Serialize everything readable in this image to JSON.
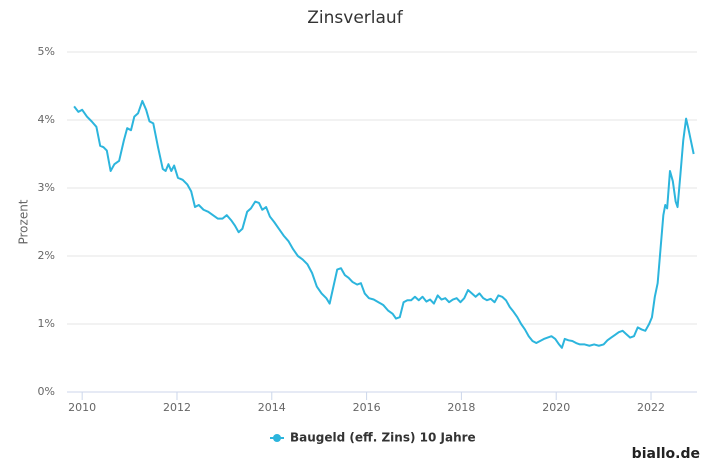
{
  "chart_data": {
    "type": "line",
    "title": "Zinsverlauf",
    "y_label": "Prozent",
    "xlim": [
      2009.68,
      2022.97
    ],
    "xticks": [
      2010,
      2012,
      2014,
      2016,
      2018,
      2020,
      2022
    ],
    "ylim": [
      0,
      5
    ],
    "yticks": [
      {
        "value": 0,
        "label": "0%"
      },
      {
        "value": 1,
        "label": "1%"
      },
      {
        "value": 2,
        "label": "2%"
      },
      {
        "value": 3,
        "label": "3%"
      },
      {
        "value": 4,
        "label": "4%"
      },
      {
        "value": 5,
        "label": "5%"
      }
    ],
    "grid": true,
    "legend": "bottom",
    "x": [
      2009.83,
      2009.92,
      2010.0,
      2010.1,
      2010.2,
      2010.3,
      2010.38,
      2010.45,
      2010.52,
      2010.6,
      2010.68,
      2010.78,
      2010.88,
      2010.95,
      2011.03,
      2011.1,
      2011.18,
      2011.27,
      2011.35,
      2011.42,
      2011.5,
      2011.6,
      2011.7,
      2011.76,
      2011.82,
      2011.88,
      2011.94,
      2012.02,
      2012.12,
      2012.22,
      2012.3,
      2012.38,
      2012.46,
      2012.56,
      2012.66,
      2012.76,
      2012.86,
      2012.96,
      2013.05,
      2013.15,
      2013.22,
      2013.3,
      2013.38,
      2013.48,
      2013.56,
      2013.65,
      2013.73,
      2013.8,
      2013.88,
      2013.96,
      2014.05,
      2014.15,
      2014.25,
      2014.35,
      2014.45,
      2014.55,
      2014.65,
      2014.75,
      2014.85,
      2014.95,
      2015.05,
      2015.15,
      2015.22,
      2015.3,
      2015.38,
      2015.46,
      2015.54,
      2015.62,
      2015.7,
      2015.8,
      2015.88,
      2015.96,
      2016.05,
      2016.15,
      2016.25,
      2016.35,
      2016.45,
      2016.55,
      2016.62,
      2016.7,
      2016.78,
      2016.86,
      2016.94,
      2017.02,
      2017.1,
      2017.18,
      2017.26,
      2017.34,
      2017.42,
      2017.5,
      2017.58,
      2017.66,
      2017.74,
      2017.82,
      2017.9,
      2017.98,
      2018.06,
      2018.14,
      2018.22,
      2018.3,
      2018.38,
      2018.46,
      2018.54,
      2018.62,
      2018.7,
      2018.78,
      2018.86,
      2018.94,
      2019.02,
      2019.1,
      2019.18,
      2019.26,
      2019.34,
      2019.42,
      2019.5,
      2019.58,
      2019.66,
      2019.74,
      2019.82,
      2019.9,
      2019.98,
      2020.06,
      2020.12,
      2020.18,
      2020.26,
      2020.34,
      2020.42,
      2020.5,
      2020.6,
      2020.7,
      2020.8,
      2020.9,
      2021.0,
      2021.08,
      2021.16,
      2021.24,
      2021.32,
      2021.4,
      2021.48,
      2021.56,
      2021.64,
      2021.72,
      2021.8,
      2021.88,
      2021.96,
      2022.02,
      2022.08,
      2022.14,
      2022.2,
      2022.26,
      2022.3,
      2022.34,
      2022.4,
      2022.46,
      2022.52,
      2022.56,
      2022.62,
      2022.68,
      2022.74,
      2022.78,
      2022.84,
      2022.9
    ],
    "series": [
      {
        "name": "Baugeld (eff. Zins) 10 Jahre",
        "color": "#2cb5dd",
        "values": [
          4.2,
          4.12,
          4.15,
          4.05,
          3.98,
          3.9,
          3.62,
          3.6,
          3.55,
          3.25,
          3.35,
          3.4,
          3.7,
          3.88,
          3.85,
          4.05,
          4.1,
          4.28,
          4.15,
          3.98,
          3.95,
          3.6,
          3.28,
          3.25,
          3.35,
          3.25,
          3.33,
          3.15,
          3.12,
          3.05,
          2.95,
          2.72,
          2.75,
          2.68,
          2.65,
          2.6,
          2.55,
          2.55,
          2.6,
          2.52,
          2.45,
          2.35,
          2.4,
          2.65,
          2.7,
          2.8,
          2.78,
          2.68,
          2.72,
          2.58,
          2.5,
          2.4,
          2.3,
          2.22,
          2.1,
          2.0,
          1.95,
          1.88,
          1.75,
          1.55,
          1.45,
          1.38,
          1.3,
          1.55,
          1.8,
          1.82,
          1.72,
          1.68,
          1.62,
          1.58,
          1.6,
          1.45,
          1.38,
          1.36,
          1.32,
          1.28,
          1.2,
          1.15,
          1.08,
          1.1,
          1.32,
          1.35,
          1.35,
          1.4,
          1.35,
          1.4,
          1.33,
          1.36,
          1.3,
          1.42,
          1.36,
          1.38,
          1.32,
          1.36,
          1.38,
          1.32,
          1.38,
          1.5,
          1.45,
          1.4,
          1.45,
          1.38,
          1.35,
          1.37,
          1.32,
          1.42,
          1.4,
          1.35,
          1.25,
          1.18,
          1.1,
          1.0,
          0.92,
          0.82,
          0.75,
          0.72,
          0.75,
          0.78,
          0.8,
          0.82,
          0.78,
          0.7,
          0.65,
          0.78,
          0.76,
          0.75,
          0.72,
          0.7,
          0.7,
          0.68,
          0.7,
          0.68,
          0.7,
          0.76,
          0.8,
          0.84,
          0.88,
          0.9,
          0.85,
          0.8,
          0.82,
          0.95,
          0.92,
          0.9,
          1.0,
          1.1,
          1.4,
          1.6,
          2.1,
          2.6,
          2.75,
          2.7,
          3.25,
          3.1,
          2.8,
          2.72,
          3.2,
          3.7,
          4.02,
          3.9,
          3.7,
          3.5
        ]
      }
    ]
  },
  "watermark": "biallo.de"
}
